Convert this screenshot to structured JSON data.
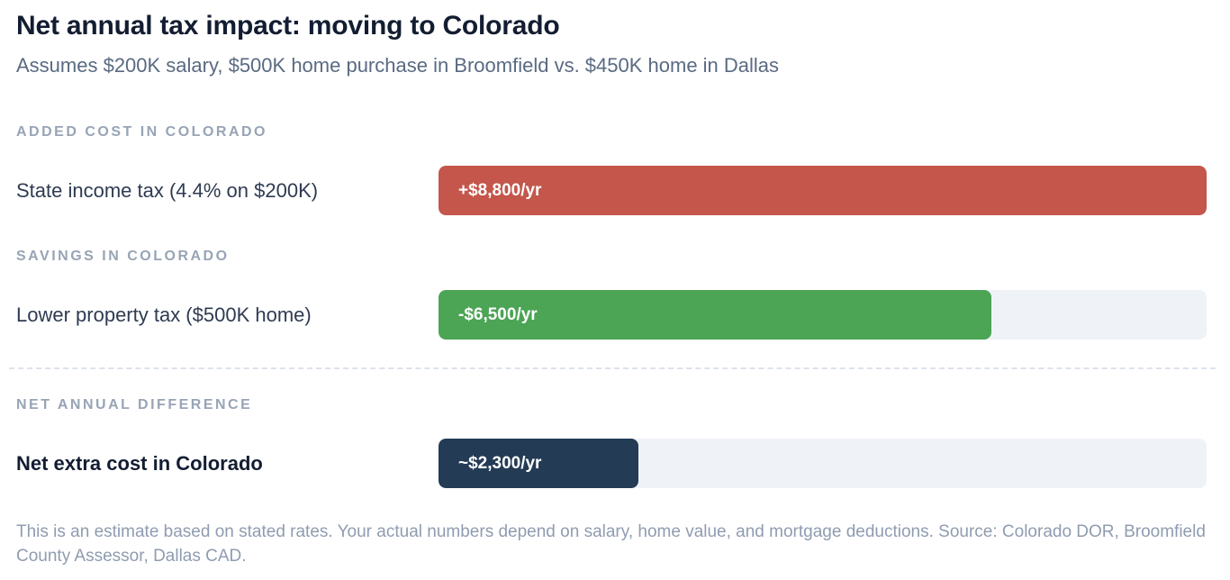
{
  "page": {
    "title": "Net annual tax impact: moving to Colorado",
    "subtitle": "Assumes $200K salary, $500K home purchase in Broomfield vs. $450K home in Dallas",
    "footer": "This is an estimate based on stated rates. Your actual numbers depend on salary, home value, and mortgage deductions. Source: Colorado DOR, Broomfield County Assessor, Dallas CAD."
  },
  "colors": {
    "added_cost_bar": "#c4564b",
    "savings_bar": "#4ca455",
    "net_bar": "#243b55",
    "bar_track": "#eff3f8",
    "title_text": "#131d32",
    "section_header_text": "#98a4b6",
    "row_label_text": "#2f3b52",
    "muted_text": "#8f9cb0"
  },
  "sections": [
    {
      "header": "ADDED COST IN COLORADO",
      "rows": [
        {
          "label": "State income tax (4.4% on $200K)",
          "bar_label": "+$8,800/yr",
          "bar_style": "width:100%;background-color:#c4564b"
        }
      ]
    },
    {
      "header": "SAVINGS IN COLORADO",
      "rows": [
        {
          "label": "Lower property tax ($500K home)",
          "bar_label": "-$6,500/yr",
          "bar_style": "width:72%;background-color:#4ca455"
        }
      ]
    },
    {
      "header": "NET ANNUAL DIFFERENCE",
      "rows": [
        {
          "label": "Net extra cost in Colorado",
          "bar_label": "~$2,300/yr",
          "bar_style": "width:26%;background-color:#243b55"
        }
      ]
    }
  ],
  "chart_data": {
    "type": "bar",
    "orientation": "horizontal",
    "title": "Net annual tax impact: moving to Colorado",
    "subtitle": "Assumes $200K salary, $500K home purchase in Broomfield vs. $450K home in Dallas",
    "groups": [
      "ADDED COST IN COLORADO",
      "SAVINGS IN COLORADO",
      "NET ANNUAL DIFFERENCE"
    ],
    "categories": [
      "State income tax (4.4% on $200K)",
      "Lower property tax ($500K home)",
      "Net extra cost in Colorado"
    ],
    "values": [
      8800,
      -6500,
      2300
    ],
    "value_labels": [
      "+$8,800/yr",
      "-$6,500/yr",
      "~$2,300/yr"
    ],
    "bar_colors": [
      "#c4564b",
      "#4ca455",
      "#243b55"
    ],
    "units": "USD per year",
    "xlim": [
      0,
      8800
    ],
    "grid": false,
    "legend": false,
    "note": "This is an estimate based on stated rates. Your actual numbers depend on salary, home value, and mortgage deductions. Source: Colorado DOR, Broomfield County Assessor, Dallas CAD."
  }
}
